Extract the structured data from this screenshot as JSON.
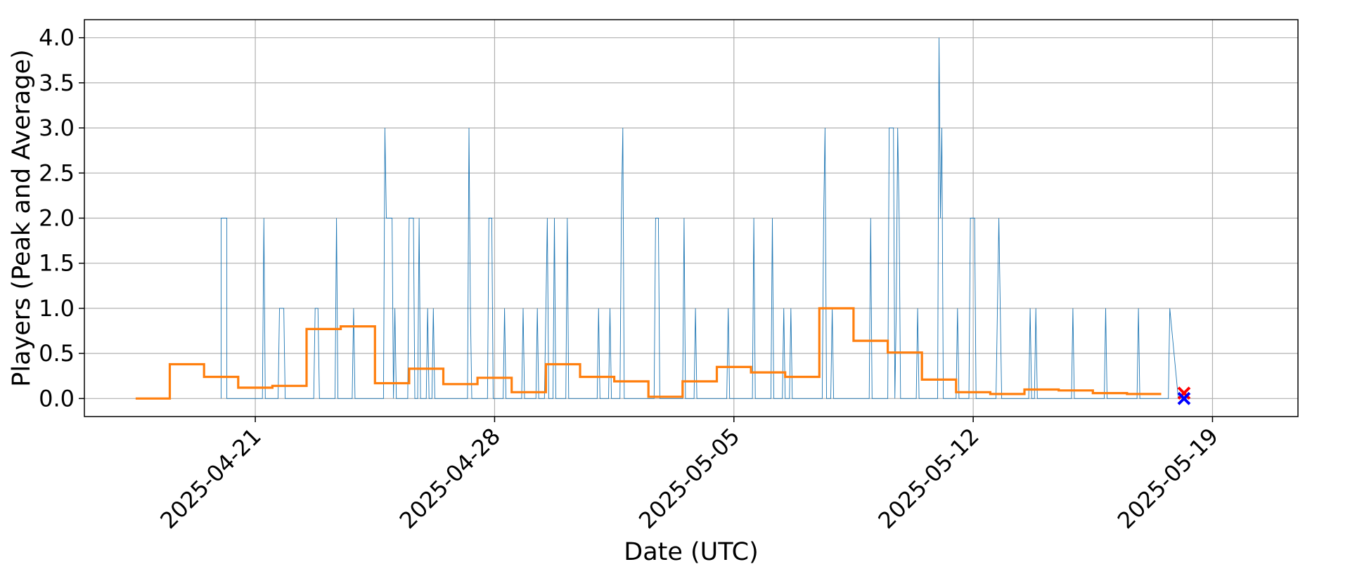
{
  "chart_data": {
    "type": "line",
    "title": "",
    "xlabel": "Date (UTC)",
    "ylabel": "Players (Peak and Average)",
    "xlim": [
      "2025-04-16T00:00",
      "2025-05-21T12:00"
    ],
    "ylim": [
      -0.2,
      4.2
    ],
    "grid": true,
    "x_ticks": [
      "2025-04-21",
      "2025-04-28",
      "2025-05-05",
      "2025-05-12",
      "2025-05-19"
    ],
    "y_ticks": [
      "0.0",
      "0.5",
      "1.0",
      "1.5",
      "2.0",
      "2.5",
      "3.0",
      "3.5",
      "4.0"
    ],
    "series": [
      {
        "style": "thin-line",
        "color": "#1f77b4",
        "points": [
          [
            "2025-04-20T00:00",
            0
          ],
          [
            "2025-04-20T00:00",
            2
          ],
          [
            "2025-04-20T04:00",
            2
          ],
          [
            "2025-04-20T04:00",
            0
          ],
          [
            "2025-04-21T05:00",
            0
          ],
          [
            "2025-04-21T06:00",
            2
          ],
          [
            "2025-04-21T07:00",
            0
          ],
          [
            "2025-04-21T16:00",
            0
          ],
          [
            "2025-04-21T17:00",
            1
          ],
          [
            "2025-04-21T20:00",
            1
          ],
          [
            "2025-04-21T21:00",
            0
          ],
          [
            "2025-04-22T17:00",
            0
          ],
          [
            "2025-04-22T18:00",
            1
          ],
          [
            "2025-04-22T20:00",
            1
          ],
          [
            "2025-04-22T21:00",
            0
          ],
          [
            "2025-04-23T08:00",
            0
          ],
          [
            "2025-04-23T09:00",
            2
          ],
          [
            "2025-04-23T10:00",
            0
          ],
          [
            "2025-04-23T20:00",
            0
          ],
          [
            "2025-04-23T21:00",
            1
          ],
          [
            "2025-04-23T22:00",
            0
          ],
          [
            "2025-04-24T18:00",
            0
          ],
          [
            "2025-04-24T19:00",
            3
          ],
          [
            "2025-04-24T20:00",
            2
          ],
          [
            "2025-04-25T00:00",
            2
          ],
          [
            "2025-04-25T01:00",
            0
          ],
          [
            "2025-04-25T02:00",
            1
          ],
          [
            "2025-04-25T03:00",
            0
          ],
          [
            "2025-04-25T11:00",
            0
          ],
          [
            "2025-04-25T12:00",
            2
          ],
          [
            "2025-04-25T15:00",
            2
          ],
          [
            "2025-04-25T16:00",
            0
          ],
          [
            "2025-04-25T18:00",
            0
          ],
          [
            "2025-04-25T19:00",
            2
          ],
          [
            "2025-04-25T20:00",
            0
          ],
          [
            "2025-04-26T00:00",
            0
          ],
          [
            "2025-04-26T01:00",
            1
          ],
          [
            "2025-04-26T02:00",
            0
          ],
          [
            "2025-04-26T04:00",
            0
          ],
          [
            "2025-04-26T05:00",
            1
          ],
          [
            "2025-04-26T06:00",
            0
          ],
          [
            "2025-04-27T05:00",
            0
          ],
          [
            "2025-04-27T06:00",
            3
          ],
          [
            "2025-04-27T07:00",
            1
          ],
          [
            "2025-04-27T08:00",
            0
          ],
          [
            "2025-04-27T19:00",
            0
          ],
          [
            "2025-04-27T20:00",
            2
          ],
          [
            "2025-04-27T22:00",
            2
          ],
          [
            "2025-04-27T23:00",
            0
          ],
          [
            "2025-04-28T06:00",
            0
          ],
          [
            "2025-04-28T07:00",
            1
          ],
          [
            "2025-04-28T08:00",
            0
          ],
          [
            "2025-04-28T19:00",
            0
          ],
          [
            "2025-04-28T20:00",
            1
          ],
          [
            "2025-04-28T21:00",
            0
          ],
          [
            "2025-04-29T05:00",
            0
          ],
          [
            "2025-04-29T06:00",
            1
          ],
          [
            "2025-04-29T07:00",
            0
          ],
          [
            "2025-04-29T11:00",
            0
          ],
          [
            "2025-04-29T12:00",
            1
          ],
          [
            "2025-04-29T13:00",
            2
          ],
          [
            "2025-04-29T14:00",
            0
          ],
          [
            "2025-04-29T17:00",
            0
          ],
          [
            "2025-04-29T18:00",
            2
          ],
          [
            "2025-04-29T19:00",
            0
          ],
          [
            "2025-04-30T02:00",
            0
          ],
          [
            "2025-04-30T03:00",
            2
          ],
          [
            "2025-04-30T04:00",
            0
          ],
          [
            "2025-05-01T00:00",
            0
          ],
          [
            "2025-05-01T01:00",
            1
          ],
          [
            "2025-05-01T02:00",
            0
          ],
          [
            "2025-05-01T08:00",
            0
          ],
          [
            "2025-05-01T09:00",
            1
          ],
          [
            "2025-05-01T10:00",
            0
          ],
          [
            "2025-05-01T16:00",
            0
          ],
          [
            "2025-05-01T17:00",
            2
          ],
          [
            "2025-05-01T18:00",
            3
          ],
          [
            "2025-05-01T19:00",
            0
          ],
          [
            "2025-05-02T16:00",
            0
          ],
          [
            "2025-05-02T17:00",
            2
          ],
          [
            "2025-05-02T19:00",
            2
          ],
          [
            "2025-05-02T20:00",
            0
          ],
          [
            "2025-05-03T12:00",
            0
          ],
          [
            "2025-05-03T13:00",
            2
          ],
          [
            "2025-05-03T14:00",
            0
          ],
          [
            "2025-05-03T20:00",
            0
          ],
          [
            "2025-05-03T21:00",
            1
          ],
          [
            "2025-05-03T22:00",
            0
          ],
          [
            "2025-05-04T19:00",
            0
          ],
          [
            "2025-05-04T20:00",
            1
          ],
          [
            "2025-05-04T21:00",
            0
          ],
          [
            "2025-05-05T13:00",
            0
          ],
          [
            "2025-05-05T14:00",
            2
          ],
          [
            "2025-05-05T15:00",
            0
          ],
          [
            "2025-05-06T02:00",
            0
          ],
          [
            "2025-05-06T03:00",
            2
          ],
          [
            "2025-05-06T04:00",
            0
          ],
          [
            "2025-05-06T10:00",
            0
          ],
          [
            "2025-05-06T11:00",
            1
          ],
          [
            "2025-05-06T12:00",
            0
          ],
          [
            "2025-05-06T15:00",
            0
          ],
          [
            "2025-05-06T16:00",
            1
          ],
          [
            "2025-05-06T17:00",
            0
          ],
          [
            "2025-05-07T14:00",
            0
          ],
          [
            "2025-05-07T15:00",
            2
          ],
          [
            "2025-05-07T16:00",
            3
          ],
          [
            "2025-05-07T17:00",
            0
          ],
          [
            "2025-05-07T20:00",
            0
          ],
          [
            "2025-05-07T21:00",
            1
          ],
          [
            "2025-05-07T22:00",
            0
          ],
          [
            "2025-05-08T23:00",
            0
          ],
          [
            "2025-05-09T00:00",
            2
          ],
          [
            "2025-05-09T01:00",
            0
          ],
          [
            "2025-05-09T12:00",
            0
          ],
          [
            "2025-05-09T13:00",
            3
          ],
          [
            "2025-05-09T16:00",
            3
          ],
          [
            "2025-05-09T17:00",
            0
          ],
          [
            "2025-05-09T18:00",
            1
          ],
          [
            "2025-05-09T19:00",
            3
          ],
          [
            "2025-05-09T20:00",
            2
          ],
          [
            "2025-05-09T21:00",
            0
          ],
          [
            "2025-05-10T08:00",
            0
          ],
          [
            "2025-05-10T09:00",
            1
          ],
          [
            "2025-05-10T10:00",
            0
          ],
          [
            "2025-05-10T23:00",
            0
          ],
          [
            "2025-05-11T00:00",
            4
          ],
          [
            "2025-05-11T01:00",
            2
          ],
          [
            "2025-05-11T02:00",
            3
          ],
          [
            "2025-05-11T03:00",
            0
          ],
          [
            "2025-05-11T12:00",
            0
          ],
          [
            "2025-05-11T13:00",
            1
          ],
          [
            "2025-05-11T14:00",
            0
          ],
          [
            "2025-05-11T21:00",
            0
          ],
          [
            "2025-05-11T22:00",
            2
          ],
          [
            "2025-05-12T01:00",
            2
          ],
          [
            "2025-05-12T02:00",
            0
          ],
          [
            "2025-05-12T16:00",
            0
          ],
          [
            "2025-05-12T17:00",
            1
          ],
          [
            "2025-05-12T18:00",
            2
          ],
          [
            "2025-05-12T19:00",
            1
          ],
          [
            "2025-05-12T20:00",
            0
          ],
          [
            "2025-05-13T15:00",
            0
          ],
          [
            "2025-05-13T16:00",
            1
          ],
          [
            "2025-05-13T17:00",
            0
          ],
          [
            "2025-05-13T19:00",
            0
          ],
          [
            "2025-05-13T20:00",
            1
          ],
          [
            "2025-05-13T21:00",
            0
          ],
          [
            "2025-05-14T21:00",
            0
          ],
          [
            "2025-05-14T22:00",
            1
          ],
          [
            "2025-05-14T23:00",
            0
          ],
          [
            "2025-05-15T20:00",
            0
          ],
          [
            "2025-05-15T21:00",
            1
          ],
          [
            "2025-05-15T22:00",
            0
          ],
          [
            "2025-05-16T19:00",
            0
          ],
          [
            "2025-05-16T20:00",
            1
          ],
          [
            "2025-05-16T21:00",
            0
          ],
          [
            "2025-05-17T17:00",
            0
          ],
          [
            "2025-05-17T18:00",
            1
          ],
          [
            "2025-05-18T00:00",
            0
          ]
        ]
      },
      {
        "style": "thick-step",
        "color": "#ff7f0e",
        "points": [
          [
            "2025-04-17T12:00",
            0.0
          ],
          [
            "2025-04-18T12:00",
            0.0
          ],
          [
            "2025-04-18T12:00",
            0.38
          ],
          [
            "2025-04-19T12:00",
            0.38
          ],
          [
            "2025-04-19T12:00",
            0.24
          ],
          [
            "2025-04-20T12:00",
            0.24
          ],
          [
            "2025-04-20T12:00",
            0.12
          ],
          [
            "2025-04-21T12:00",
            0.12
          ],
          [
            "2025-04-21T12:00",
            0.14
          ],
          [
            "2025-04-22T12:00",
            0.14
          ],
          [
            "2025-04-22T12:00",
            0.77
          ],
          [
            "2025-04-23T12:00",
            0.77
          ],
          [
            "2025-04-23T12:00",
            0.8
          ],
          [
            "2025-04-24T12:00",
            0.8
          ],
          [
            "2025-04-24T12:00",
            0.17
          ],
          [
            "2025-04-25T12:00",
            0.17
          ],
          [
            "2025-04-25T12:00",
            0.33
          ],
          [
            "2025-04-26T12:00",
            0.33
          ],
          [
            "2025-04-26T12:00",
            0.16
          ],
          [
            "2025-04-27T12:00",
            0.16
          ],
          [
            "2025-04-27T12:00",
            0.23
          ],
          [
            "2025-04-28T12:00",
            0.23
          ],
          [
            "2025-04-28T12:00",
            0.07
          ],
          [
            "2025-04-29T12:00",
            0.07
          ],
          [
            "2025-04-29T12:00",
            0.38
          ],
          [
            "2025-04-30T12:00",
            0.38
          ],
          [
            "2025-04-30T12:00",
            0.24
          ],
          [
            "2025-05-01T12:00",
            0.24
          ],
          [
            "2025-05-01T12:00",
            0.19
          ],
          [
            "2025-05-02T12:00",
            0.19
          ],
          [
            "2025-05-02T12:00",
            0.02
          ],
          [
            "2025-05-03T12:00",
            0.02
          ],
          [
            "2025-05-03T12:00",
            0.19
          ],
          [
            "2025-05-04T12:00",
            0.19
          ],
          [
            "2025-05-04T12:00",
            0.35
          ],
          [
            "2025-05-05T12:00",
            0.35
          ],
          [
            "2025-05-05T12:00",
            0.29
          ],
          [
            "2025-05-06T12:00",
            0.29
          ],
          [
            "2025-05-06T12:00",
            0.24
          ],
          [
            "2025-05-07T12:00",
            0.24
          ],
          [
            "2025-05-07T12:00",
            1.0
          ],
          [
            "2025-05-08T12:00",
            1.0
          ],
          [
            "2025-05-08T12:00",
            0.64
          ],
          [
            "2025-05-09T12:00",
            0.64
          ],
          [
            "2025-05-09T12:00",
            0.51
          ],
          [
            "2025-05-10T12:00",
            0.51
          ],
          [
            "2025-05-10T12:00",
            0.21
          ],
          [
            "2025-05-11T12:00",
            0.21
          ],
          [
            "2025-05-11T12:00",
            0.07
          ],
          [
            "2025-05-12T12:00",
            0.07
          ],
          [
            "2025-05-12T12:00",
            0.05
          ],
          [
            "2025-05-13T12:00",
            0.05
          ],
          [
            "2025-05-13T12:00",
            0.1
          ],
          [
            "2025-05-14T12:00",
            0.1
          ],
          [
            "2025-05-14T12:00",
            0.09
          ],
          [
            "2025-05-15T12:00",
            0.09
          ],
          [
            "2025-05-15T12:00",
            0.06
          ],
          [
            "2025-05-16T12:00",
            0.06
          ],
          [
            "2025-05-16T12:00",
            0.05
          ],
          [
            "2025-05-17T12:00",
            0.05
          ]
        ]
      }
    ],
    "markers": [
      {
        "x": "2025-05-18T04:00",
        "y": 0.06,
        "color": "#ff0000",
        "shape": "x"
      },
      {
        "x": "2025-05-18T04:00",
        "y": 0.0,
        "color": "#0000ff",
        "shape": "x"
      }
    ]
  }
}
